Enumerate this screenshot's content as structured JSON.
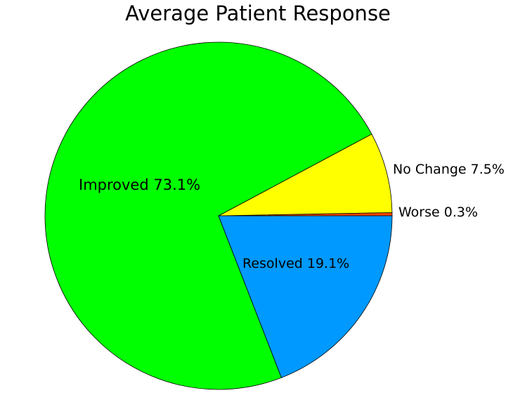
{
  "chart_data": {
    "type": "pie",
    "title": "Average Patient Response",
    "slices": [
      {
        "name": "Worse",
        "label": "Worse 0.3%",
        "value": 0.3,
        "color": "#ff4500"
      },
      {
        "name": "No Change",
        "label": "No Change 7.5%",
        "value": 7.5,
        "color": "#ffff00"
      },
      {
        "name": "Improved",
        "label": "Improved 73.1%",
        "value": 73.1,
        "color": "#00ff00"
      },
      {
        "name": "Resolved",
        "label": "Resolved 19.1%",
        "value": 19.1,
        "color": "#0099ff"
      }
    ],
    "start": "3 o'clock",
    "direction": "counterclockwise",
    "legend": "none"
  }
}
